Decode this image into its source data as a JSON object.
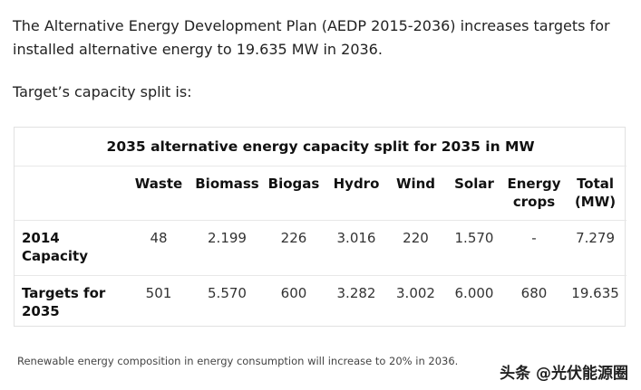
{
  "intro": "The Alternative Energy Development Plan (AEDP 2015-2036) increases targets for installed alternative energy to 19.635 MW in 2036.",
  "lead": "Target’s capacity split is:",
  "table": {
    "caption": "2035 alternative energy capacity split for 2035 in MW",
    "headers": [
      "",
      "Waste",
      "Biomass",
      "Biogas",
      "Hydro",
      "Wind",
      "Solar",
      "Energy crops",
      "Total (MW)"
    ],
    "rows": [
      {
        "label": "2014 Capacity",
        "values": [
          "48",
          "2.199",
          "226",
          "3.016",
          "220",
          "1.570",
          "-",
          "7.279"
        ]
      },
      {
        "label": "Targets for 2035",
        "values": [
          "501",
          "5.570",
          "600",
          "3.282",
          "3.002",
          "6.000",
          "680",
          "19.635"
        ]
      }
    ]
  },
  "footnote": "Renewable energy composition in energy consumption will increase to 20% in 2036.",
  "watermark": "头条 @光伏能源圈"
}
